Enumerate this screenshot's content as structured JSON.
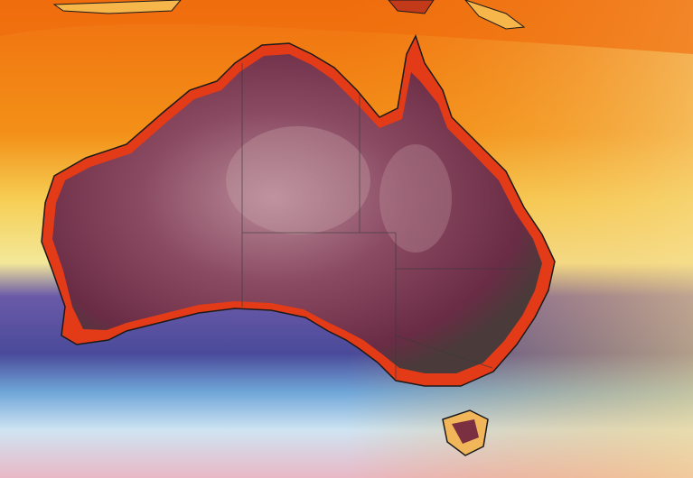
{
  "map": {
    "region": "Australia",
    "colors": {
      "hot_land": "#6e2a3f",
      "very_hot_land": "#c9a3a8",
      "coastal_hot": "#e8391a",
      "ocean_warm": "#f07a12",
      "ocean_mild": "#f6c14a",
      "ocean_cool": "#5a4a9e",
      "ocean_cold": "#9fc4e6",
      "ocean_coldest": "#e8b8c4",
      "coastline": "#1a1a1a",
      "border": "#3a3a3a"
    }
  }
}
